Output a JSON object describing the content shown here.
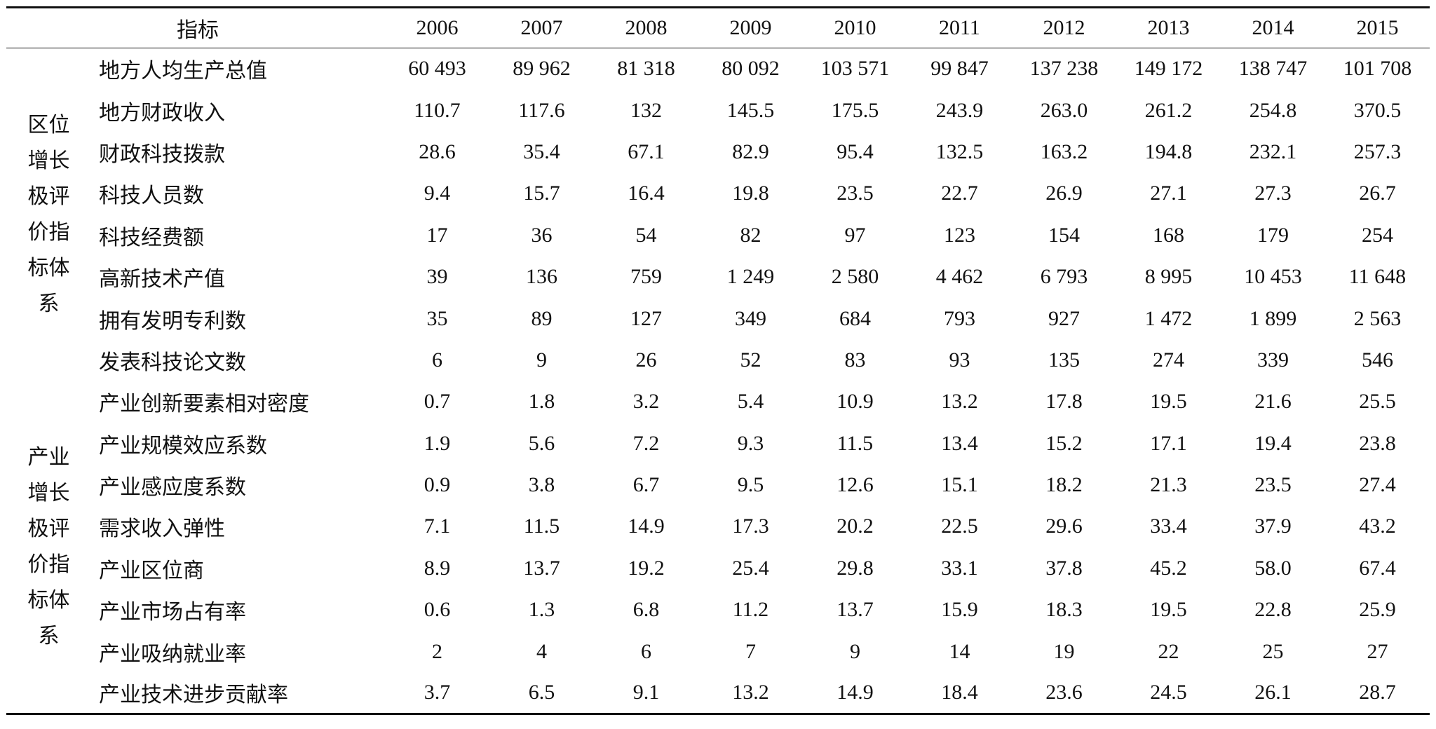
{
  "table": {
    "columns": [
      "指标",
      "2006",
      "2007",
      "2008",
      "2009",
      "2010",
      "2011",
      "2012",
      "2013",
      "2014",
      "2015"
    ],
    "groups": [
      {
        "label": "区位增长极评价指标体系",
        "rows": [
          [
            "地方人均生产总值",
            "60 493",
            "89 962",
            "81 318",
            "80 092",
            "103 571",
            "99 847",
            "137 238",
            "149 172",
            "138 747",
            "101 708"
          ],
          [
            "地方财政收入",
            "110.7",
            "117.6",
            "132",
            "145.5",
            "175.5",
            "243.9",
            "263.0",
            "261.2",
            "254.8",
            "370.5"
          ],
          [
            "财政科技拨款",
            "28.6",
            "35.4",
            "67.1",
            "82.9",
            "95.4",
            "132.5",
            "163.2",
            "194.8",
            "232.1",
            "257.3"
          ],
          [
            "科技人员数",
            "9.4",
            "15.7",
            "16.4",
            "19.8",
            "23.5",
            "22.7",
            "26.9",
            "27.1",
            "27.3",
            "26.7"
          ],
          [
            "科技经费额",
            "17",
            "36",
            "54",
            "82",
            "97",
            "123",
            "154",
            "168",
            "179",
            "254"
          ],
          [
            "高新技术产值",
            "39",
            "136",
            "759",
            "1 249",
            "2 580",
            "4 462",
            "6 793",
            "8 995",
            "10 453",
            "11 648"
          ],
          [
            "拥有发明专利数",
            "35",
            "89",
            "127",
            "349",
            "684",
            "793",
            "927",
            "1 472",
            "1 899",
            "2 563"
          ],
          [
            "发表科技论文数",
            "6",
            "9",
            "26",
            "52",
            "83",
            "93",
            "135",
            "274",
            "339",
            "546"
          ]
        ]
      },
      {
        "label": "产业增长极评价指标体系",
        "rows": [
          [
            "产业创新要素相对密度",
            "0.7",
            "1.8",
            "3.2",
            "5.4",
            "10.9",
            "13.2",
            "17.8",
            "19.5",
            "21.6",
            "25.5"
          ],
          [
            "产业规模效应系数",
            "1.9",
            "5.6",
            "7.2",
            "9.3",
            "11.5",
            "13.4",
            "15.2",
            "17.1",
            "19.4",
            "23.8"
          ],
          [
            "产业感应度系数",
            "0.9",
            "3.8",
            "6.7",
            "9.5",
            "12.6",
            "15.1",
            "18.2",
            "21.3",
            "23.5",
            "27.4"
          ],
          [
            "需求收入弹性",
            "7.1",
            "11.5",
            "14.9",
            "17.3",
            "20.2",
            "22.5",
            "29.6",
            "33.4",
            "37.9",
            "43.2"
          ],
          [
            "产业区位商",
            "8.9",
            "13.7",
            "19.2",
            "25.4",
            "29.8",
            "33.1",
            "37.8",
            "45.2",
            "58.0",
            "67.4"
          ],
          [
            "产业市场占有率",
            "0.6",
            "1.3",
            "6.8",
            "11.2",
            "13.7",
            "15.9",
            "18.3",
            "19.5",
            "22.8",
            "25.9"
          ],
          [
            "产业吸纳就业率",
            "2",
            "4",
            "6",
            "7",
            "9",
            "14",
            "19",
            "22",
            "25",
            "27"
          ],
          [
            "产业技术进步贡献率",
            "3.7",
            "6.5",
            "9.1",
            "13.2",
            "14.9",
            "18.4",
            "23.6",
            "24.5",
            "26.1",
            "28.7"
          ]
        ]
      }
    ]
  }
}
